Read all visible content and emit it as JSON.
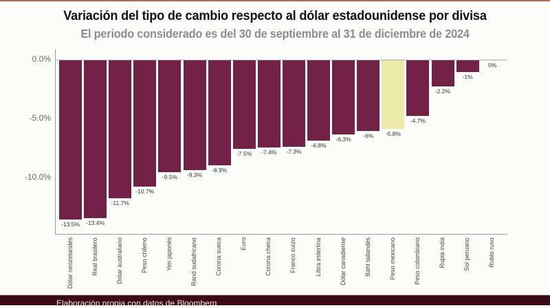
{
  "header": {
    "title": "Variación del tipo de cambio respecto al dólar estadounidense por divisa",
    "subtitle": "El periodo considerado es del 30 de septiembre al 31 de diciembre de 2024"
  },
  "footer": {
    "source": "Elaboración propia con datos de Bloomberg"
  },
  "colors": {
    "bar_default": "#722246",
    "bar_highlight": "#ebeaa8",
    "footer_bg": "#3b0918",
    "top_line": "#b5645a"
  },
  "chart_data": {
    "type": "bar",
    "title": "Variación del tipo de cambio respecto al dólar estadounidense por divisa",
    "subtitle": "El periodo considerado es del 30 de septiembre al 31 de diciembre de 2024",
    "xlabel": "",
    "ylabel": "",
    "ylim": [
      -15.5,
      0.9
    ],
    "yticks": [
      "0.0%",
      "-5.0%",
      "-10.0%"
    ],
    "ytick_values": [
      0,
      -5,
      -10
    ],
    "grid": false,
    "legend": null,
    "highlight": "Peso mexicano",
    "categories": [
      "Dólar neozelandés",
      "Real brasilero",
      "Dólar australiano",
      "Peso chileno",
      "Yen japonés",
      "Rand sudafricano",
      "Corona sueca",
      "Euro",
      "Corona checa",
      "Franco suizo",
      "Libra esterlina",
      "Dólar canadiense",
      "Baht tailandés",
      "Peso mexicano",
      "Peso colombiano",
      "Rupia india",
      "Sol peruano",
      "Rublo ruso"
    ],
    "values": [
      -13.5,
      -13.4,
      -11.7,
      -10.7,
      -9.5,
      -9.3,
      -8.9,
      -7.5,
      -7.4,
      -7.3,
      -6.8,
      -6.3,
      -6.0,
      -5.8,
      -4.7,
      -2.2,
      -1.0,
      0.0
    ],
    "value_labels": [
      "-13.5%",
      "-13.4%",
      "-11.7%",
      "-10.7%",
      "-9.5%",
      "-9.3%",
      "-8.9%",
      "-7.5%",
      "-7.4%",
      "-7.3%",
      "-6.8%",
      "-6.3%",
      "-6%",
      "-5.8%",
      "-4.7%",
      "-2.2%",
      "-1%",
      "0%"
    ],
    "source": "Elaboración propia con datos de Bloomberg"
  }
}
